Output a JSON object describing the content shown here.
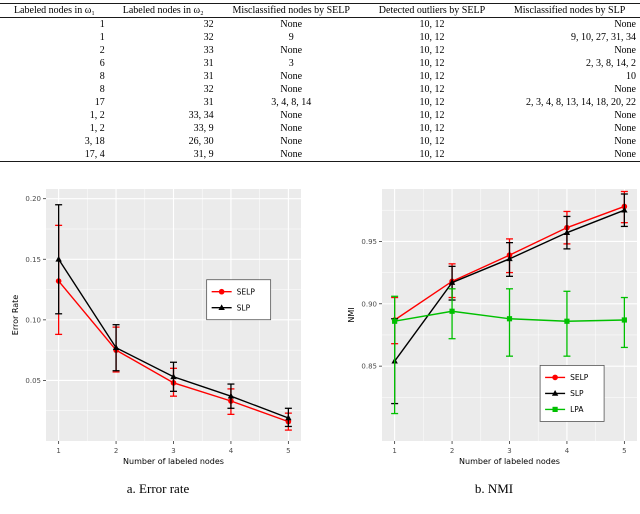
{
  "colors": {
    "panel": "#ebebeb",
    "grid": "#ffffff",
    "selp": "#ff0000",
    "slp": "#000000",
    "lpa": "#00c000"
  },
  "table": {
    "headers": [
      "Labeled nodes in ω₁",
      "Labeled nodes in ω₂",
      "Misclassified nodes by SELP",
      "Detected outliers by SELP",
      "Misclassified nodes by SLP"
    ],
    "rows": [
      [
        "1",
        "32",
        "None",
        "10, 12",
        "None"
      ],
      [
        "1",
        "32",
        "9",
        "10, 12",
        "9, 10, 27, 31, 34"
      ],
      [
        "2",
        "33",
        "None",
        "10, 12",
        "None"
      ],
      [
        "6",
        "31",
        "3",
        "10, 12",
        "2, 3, 8, 14, 2"
      ],
      [
        "8",
        "31",
        "None",
        "10, 12",
        "10"
      ],
      [
        "8",
        "32",
        "None",
        "10, 12",
        "None"
      ],
      [
        "17",
        "31",
        "3, 4, 8, 14",
        "10, 12",
        "2, 3, 4, 8, 13, 14, 18, 20, 22"
      ],
      [
        "1, 2",
        "33, 34",
        "None",
        "10, 12",
        "None"
      ],
      [
        "1, 2",
        "33, 9",
        "None",
        "10, 12",
        "None"
      ],
      [
        "3, 18",
        "26, 30",
        "None",
        "10, 12",
        "None"
      ],
      [
        "17, 4",
        "31, 9",
        "None",
        "10, 12",
        "None"
      ]
    ]
  },
  "chart_data": [
    {
      "id": "error-rate",
      "type": "line",
      "caption": "a. Error rate",
      "title": "",
      "xlabel": "Number of labeled nodes",
      "ylabel": "Error Rate",
      "x": [
        1,
        2,
        3,
        4,
        5
      ],
      "xlim": [
        0.78,
        5.22
      ],
      "ylim": [
        0.0,
        0.208
      ],
      "xtick_values": [
        1,
        2,
        3,
        4,
        5
      ],
      "xtick_labels": [
        "1",
        "2",
        "3",
        "4",
        "5"
      ],
      "ytick_values": [
        0.05,
        0.1,
        0.15,
        0.2
      ],
      "ytick_labels": [
        "0.05",
        "0.10",
        "0.15",
        "0.20"
      ],
      "grid": "on",
      "legend": {
        "x": 0.63,
        "y": 0.36
      },
      "series": [
        {
          "name": "SELP",
          "color": "#ff0000",
          "marker": "circle",
          "y": [
            0.132,
            0.075,
            0.048,
            0.033,
            0.016
          ],
          "lo": [
            0.088,
            0.057,
            0.037,
            0.022,
            0.009
          ],
          "hi": [
            0.178,
            0.094,
            0.06,
            0.043,
            0.023
          ]
        },
        {
          "name": "SLP",
          "color": "#000000",
          "marker": "triangle",
          "y": [
            0.15,
            0.077,
            0.053,
            0.037,
            0.019
          ],
          "lo": [
            0.105,
            0.058,
            0.041,
            0.027,
            0.012
          ],
          "hi": [
            0.195,
            0.096,
            0.065,
            0.047,
            0.027
          ]
        }
      ]
    },
    {
      "id": "nmi",
      "type": "line",
      "caption": "b. NMI",
      "title": "",
      "xlabel": "Number of labeled nodes",
      "ylabel": "NMI",
      "x": [
        1,
        2,
        3,
        4,
        5
      ],
      "xlim": [
        0.78,
        5.22
      ],
      "ylim": [
        0.79,
        0.992
      ],
      "xtick_values": [
        1,
        2,
        3,
        4,
        5
      ],
      "xtick_labels": [
        "1",
        "2",
        "3",
        "4",
        "5"
      ],
      "ytick_values": [
        0.85,
        0.9,
        0.95
      ],
      "ytick_labels": [
        "0.85",
        "0.90",
        "0.95"
      ],
      "grid": "on",
      "legend": {
        "x": 0.62,
        "y": 0.7
      },
      "series": [
        {
          "name": "SELP",
          "color": "#ff0000",
          "marker": "circle",
          "y": [
            0.887,
            0.918,
            0.939,
            0.961,
            0.978
          ],
          "lo": [
            0.868,
            0.905,
            0.925,
            0.948,
            0.965
          ],
          "hi": [
            0.905,
            0.932,
            0.952,
            0.974,
            0.99
          ]
        },
        {
          "name": "SLP",
          "color": "#000000",
          "marker": "triangle",
          "y": [
            0.854,
            0.917,
            0.936,
            0.957,
            0.975
          ],
          "lo": [
            0.82,
            0.903,
            0.922,
            0.944,
            0.962
          ],
          "hi": [
            0.888,
            0.93,
            0.949,
            0.97,
            0.988
          ]
        },
        {
          "name": "LPA",
          "color": "#00c000",
          "marker": "square",
          "y": [
            0.886,
            0.894,
            0.888,
            0.886,
            0.887
          ],
          "lo": [
            0.812,
            0.872,
            0.858,
            0.858,
            0.865
          ],
          "hi": [
            0.906,
            0.912,
            0.912,
            0.91,
            0.905
          ]
        }
      ]
    }
  ]
}
